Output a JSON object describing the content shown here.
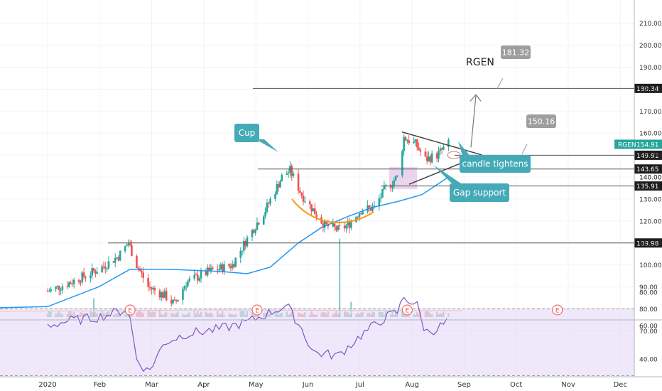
{
  "chart_data": {
    "type": "candlestick",
    "symbol": "RGEN",
    "x_tick_labels": [
      "2020",
      "Feb",
      "Mar",
      "Apr",
      "May",
      "Jun",
      "Jul",
      "Aug",
      "Sep",
      "Oct",
      "Nov",
      "Dec"
    ],
    "price_axis": {
      "ticks": [
        "210.00",
        "200.00",
        "190.00",
        "180.00",
        "170.00",
        "160.00",
        "150.00",
        "140.00",
        "130.00",
        "120.00",
        "110.00",
        "100.00",
        "90.00",
        "80.00",
        "70.00"
      ],
      "ylim": [
        68,
        212
      ]
    },
    "rsi_axis": {
      "ticks": [
        "80.00",
        "60.00",
        "40.00"
      ],
      "band": [
        30,
        70
      ]
    },
    "price_path": [
      [
        "2020-01-01",
        88
      ],
      [
        "2020-01-15",
        92
      ],
      [
        "2020-02-01",
        98
      ],
      [
        "2020-02-13",
        104
      ],
      [
        "2020-02-19",
        110
      ],
      [
        "2020-02-24",
        100
      ],
      [
        "2020-03-02",
        90
      ],
      [
        "2020-03-12",
        86
      ],
      [
        "2020-03-18",
        82
      ],
      [
        "2020-03-25",
        92
      ],
      [
        "2020-04-08",
        97
      ],
      [
        "2020-04-22",
        100
      ],
      [
        "2020-05-01",
        112
      ],
      [
        "2020-05-12",
        125
      ],
      [
        "2020-05-22",
        140
      ],
      [
        "2020-05-27",
        143
      ],
      [
        "2020-06-03",
        132
      ],
      [
        "2020-06-10",
        125
      ],
      [
        "2020-06-17",
        118
      ],
      [
        "2020-06-25",
        116
      ],
      [
        "2020-07-01",
        118
      ],
      [
        "2020-07-09",
        125
      ],
      [
        "2020-07-17",
        126
      ],
      [
        "2020-07-24",
        135
      ],
      [
        "2020-07-31",
        140
      ],
      [
        "2020-08-04",
        158
      ],
      [
        "2020-08-11",
        155
      ],
      [
        "2020-08-17",
        148
      ],
      [
        "2020-08-24",
        150
      ],
      [
        "2020-08-31",
        155
      ]
    ],
    "moving_average": [
      [
        "2020-01-01",
        81
      ],
      [
        "2020-02-01",
        90
      ],
      [
        "2020-02-20",
        98
      ],
      [
        "2020-03-15",
        98
      ],
      [
        "2020-04-15",
        97
      ],
      [
        "2020-05-01",
        96
      ],
      [
        "2020-05-15",
        99
      ],
      [
        "2020-06-01",
        110
      ],
      [
        "2020-06-15",
        117
      ],
      [
        "2020-07-01",
        122
      ],
      [
        "2020-07-15",
        126
      ],
      [
        "2020-08-01",
        129
      ],
      [
        "2020-08-15",
        132
      ],
      [
        "2020-08-31",
        140
      ]
    ],
    "rsi": [
      [
        "2020-01-01",
        60
      ],
      [
        "2020-01-15",
        63
      ],
      [
        "2020-02-01",
        65
      ],
      [
        "2020-02-19",
        70
      ],
      [
        "2020-02-24",
        40
      ],
      [
        "2020-03-02",
        32
      ],
      [
        "2020-03-12",
        50
      ],
      [
        "2020-03-25",
        55
      ],
      [
        "2020-04-15",
        58
      ],
      [
        "2020-05-01",
        62
      ],
      [
        "2020-05-25",
        72
      ],
      [
        "2020-06-03",
        58
      ],
      [
        "2020-06-10",
        44
      ],
      [
        "2020-06-25",
        42
      ],
      [
        "2020-07-10",
        55
      ],
      [
        "2020-07-24",
        65
      ],
      [
        "2020-07-31",
        68
      ],
      [
        "2020-08-04",
        77
      ],
      [
        "2020-08-12",
        72
      ],
      [
        "2020-08-17",
        56
      ],
      [
        "2020-08-24",
        58
      ],
      [
        "2020-08-31",
        63
      ]
    ],
    "horizontal_lines": [
      {
        "label": "180.34",
        "price": 180.34
      },
      {
        "label": "149.91",
        "price": 149.91
      },
      {
        "label": "143.65",
        "price": 143.65
      },
      {
        "label": "135.91",
        "price": 135.91
      },
      {
        "label": "109.98",
        "price": 109.98
      }
    ],
    "current_price": {
      "symbol": "RGEN",
      "value": "154.91"
    },
    "axis_extra_label": "140.00",
    "targets": [
      {
        "label": "181.32",
        "price": 181.32
      },
      {
        "label": "150.16",
        "price": 150.16
      }
    ],
    "annotations": [
      {
        "text": "RGEN"
      },
      {
        "text": "Cup"
      },
      {
        "text": "candle tightens"
      },
      {
        "text": "Gap support"
      }
    ],
    "earnings_marker": "E",
    "earnings_dates": [
      "2020-02-20",
      "2020-05-07",
      "2020-08-06",
      "2020-11-05"
    ],
    "volume_spikes": [
      [
        "2020-01-29",
        22
      ],
      [
        "2020-06-26",
        92
      ],
      [
        "2020-07-03",
        18
      ]
    ],
    "colors": {
      "up": "#26a69a",
      "down": "#ef5350",
      "moving_average": "#2196f3",
      "rsi_line": "#7e57c2",
      "rsi_band": "#e1d5f5",
      "callout": "#45aab8",
      "cup_curve": "#f39c12",
      "gap_box": "#e6c6e9",
      "target_box": "#9e9e9e"
    }
  }
}
